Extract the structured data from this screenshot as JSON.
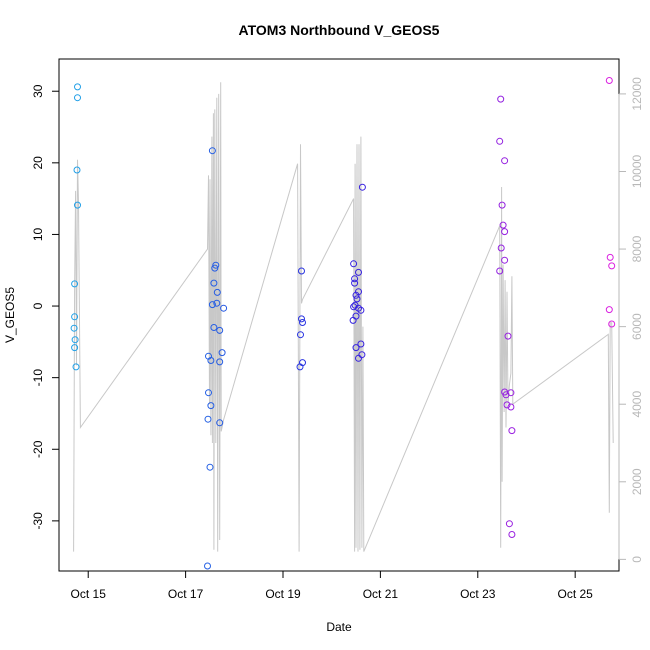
{
  "chart_data": {
    "type": "scatter",
    "title": "ATOM3 Northbound V_GEOS5",
    "xlabel": "Date",
    "ylabel": "V_GEOS5",
    "x_unit": "days of October (decimal)",
    "xlim": [
      14.4,
      25.9
    ],
    "ylim": [
      -37,
      34.5
    ],
    "y2lim": [
      -300,
      12900
    ],
    "x_ticks": [
      15,
      17,
      19,
      21,
      23,
      25
    ],
    "x_tick_labels": [
      "Oct 15",
      "Oct 17",
      "Oct 19",
      "Oct 21",
      "Oct 23",
      "Oct 25"
    ],
    "y_ticks": [
      -30,
      -20,
      -10,
      0,
      10,
      20,
      30
    ],
    "y_tick_labels": [
      "-30",
      "-20",
      "-10",
      "0",
      "10",
      "20",
      "30"
    ],
    "y2_ticks": [
      0,
      2000,
      4000,
      6000,
      8000,
      10000,
      12000
    ],
    "y2_tick_labels": [
      "0",
      "2000",
      "4000",
      "6000",
      "8000",
      "10000",
      "12000"
    ],
    "grid": false,
    "legend": "none",
    "colors": {
      "points_start": "#1fa8e8",
      "points_mid": "#2a22e0",
      "points_end": "#e020e0",
      "altitude_line": "#c8c8c8",
      "right_axis": "#b8b8b8"
    },
    "series": [
      {
        "role": "V_GEOS5 points (left axis)",
        "points": [
          [
            14.78,
            30.6
          ],
          [
            14.78,
            29.1
          ],
          [
            14.77,
            19.0
          ],
          [
            14.78,
            14.1
          ],
          [
            14.72,
            3.1
          ],
          [
            14.72,
            -1.5
          ],
          [
            14.71,
            -3.1
          ],
          [
            14.73,
            -4.7
          ],
          [
            14.72,
            -5.8
          ],
          [
            14.75,
            -8.5
          ],
          [
            17.45,
            -36.3
          ],
          [
            17.47,
            -7.0
          ],
          [
            17.47,
            -12.1
          ],
          [
            17.46,
            -15.8
          ],
          [
            17.5,
            -22.5
          ],
          [
            17.52,
            -7.6
          ],
          [
            17.52,
            -13.9
          ],
          [
            17.55,
            21.7
          ],
          [
            17.55,
            0.2
          ],
          [
            17.58,
            3.2
          ],
          [
            17.58,
            -3.0
          ],
          [
            17.6,
            5.3
          ],
          [
            17.62,
            5.7
          ],
          [
            17.64,
            0.4
          ],
          [
            17.65,
            1.9
          ],
          [
            17.7,
            -3.4
          ],
          [
            17.7,
            -7.8
          ],
          [
            17.7,
            -16.3
          ],
          [
            17.75,
            -6.5
          ],
          [
            17.78,
            -0.3
          ],
          [
            19.38,
            4.9
          ],
          [
            19.38,
            -1.8
          ],
          [
            19.4,
            -2.3
          ],
          [
            19.36,
            -4.0
          ],
          [
            19.4,
            -7.9
          ],
          [
            19.35,
            -8.5
          ],
          [
            20.45,
            5.9
          ],
          [
            20.47,
            3.8
          ],
          [
            20.47,
            3.2
          ],
          [
            20.5,
            1.5
          ],
          [
            20.52,
            1.0
          ],
          [
            20.55,
            2.0
          ],
          [
            20.45,
            -0.1
          ],
          [
            20.48,
            0.1
          ],
          [
            20.55,
            -0.3
          ],
          [
            20.6,
            -0.6
          ],
          [
            20.44,
            -2.0
          ],
          [
            20.5,
            -1.4
          ],
          [
            20.5,
            -5.8
          ],
          [
            20.6,
            -5.3
          ],
          [
            20.55,
            -7.3
          ],
          [
            20.62,
            -6.8
          ],
          [
            20.55,
            4.7
          ],
          [
            20.63,
            16.6
          ],
          [
            23.47,
            28.9
          ],
          [
            23.45,
            23.0
          ],
          [
            23.55,
            20.3
          ],
          [
            23.5,
            14.1
          ],
          [
            23.52,
            11.3
          ],
          [
            23.55,
            10.4
          ],
          [
            23.48,
            8.1
          ],
          [
            23.55,
            6.4
          ],
          [
            23.45,
            4.9
          ],
          [
            23.62,
            -4.2
          ],
          [
            23.55,
            -12.0
          ],
          [
            23.58,
            -12.4
          ],
          [
            23.68,
            -12.1
          ],
          [
            23.6,
            -13.8
          ],
          [
            23.68,
            -14.1
          ],
          [
            23.7,
            -17.4
          ],
          [
            23.65,
            -30.4
          ],
          [
            23.7,
            -31.9
          ],
          [
            25.7,
            31.5
          ],
          [
            25.72,
            6.8
          ],
          [
            25.75,
            5.6
          ],
          [
            25.7,
            -0.5
          ],
          [
            25.75,
            -2.5
          ]
        ]
      },
      {
        "role": "altitude trace (right axis)",
        "points": [
          [
            14.7,
            200
          ],
          [
            14.72,
            7000
          ],
          [
            14.74,
            9500
          ],
          [
            14.76,
            5000
          ],
          [
            14.78,
            10300
          ],
          [
            14.8,
            9200
          ],
          [
            14.84,
            3400
          ],
          [
            17.45,
            8000
          ],
          [
            17.47,
            9900
          ],
          [
            17.49,
            4000
          ],
          [
            17.5,
            9800
          ],
          [
            17.52,
            3200
          ],
          [
            17.54,
            10900
          ],
          [
            17.55,
            3000
          ],
          [
            17.57,
            11500
          ],
          [
            17.58,
            250
          ],
          [
            17.6,
            11600
          ],
          [
            17.62,
            3000
          ],
          [
            17.64,
            11900
          ],
          [
            17.66,
            200
          ],
          [
            17.68,
            12000
          ],
          [
            17.7,
            500
          ],
          [
            17.72,
            12300
          ],
          [
            17.73,
            3300
          ],
          [
            17.78,
            3600
          ],
          [
            19.3,
            10200
          ],
          [
            19.33,
            200
          ],
          [
            19.36,
            10700
          ],
          [
            19.38,
            6600
          ],
          [
            19.4,
            6700
          ],
          [
            20.45,
            9300
          ],
          [
            20.47,
            200
          ],
          [
            20.48,
            10200
          ],
          [
            20.5,
            300
          ],
          [
            20.52,
            10700
          ],
          [
            20.54,
            200
          ],
          [
            20.56,
            10700
          ],
          [
            20.58,
            250
          ],
          [
            20.6,
            10900
          ],
          [
            20.62,
            300
          ],
          [
            20.64,
            6000
          ],
          [
            20.66,
            200
          ],
          [
            23.45,
            8600
          ],
          [
            23.47,
            300
          ],
          [
            23.49,
            9600
          ],
          [
            23.5,
            2000
          ],
          [
            23.52,
            7600
          ],
          [
            23.54,
            3800
          ],
          [
            23.56,
            7200
          ],
          [
            23.58,
            3400
          ],
          [
            23.6,
            6900
          ],
          [
            23.62,
            4000
          ],
          [
            23.65,
            4500
          ],
          [
            23.68,
            4800
          ],
          [
            23.7,
            7300
          ],
          [
            23.72,
            4000
          ],
          [
            25.68,
            5800
          ],
          [
            25.7,
            1200
          ],
          [
            25.72,
            6100
          ],
          [
            25.75,
            6100
          ],
          [
            25.78,
            3000
          ]
        ]
      }
    ]
  }
}
